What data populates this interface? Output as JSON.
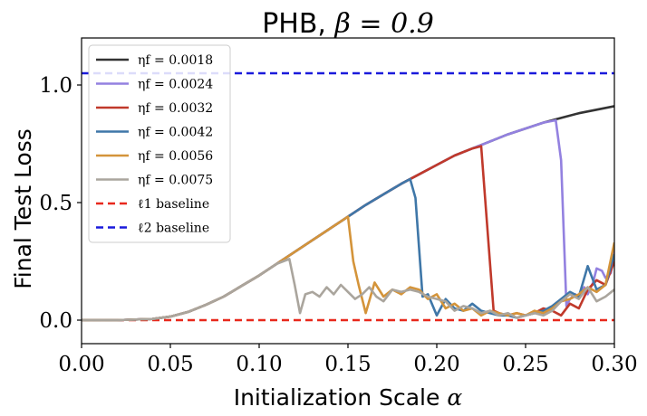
{
  "chart_data": {
    "type": "line",
    "title": "PHB, β = 0.9",
    "title_parts": {
      "text": "PHB, ",
      "math": "β = 0.9"
    },
    "xlabel": "Initialization Scale",
    "xlabel_symbol": "α",
    "ylabel": "Final Test Loss",
    "xlim": [
      0.0,
      0.3
    ],
    "ylim": [
      -0.1,
      1.2
    ],
    "xticks": [
      0.0,
      0.05,
      0.1,
      0.15,
      0.2,
      0.25,
      0.3
    ],
    "xtick_labels": [
      "0.00",
      "0.05",
      "0.10",
      "0.15",
      "0.20",
      "0.25",
      "0.30"
    ],
    "yticks": [
      0.0,
      0.5,
      1.0
    ],
    "ytick_labels": [
      "0.0",
      "0.5",
      "1.0"
    ],
    "legend_position": "top-left",
    "series": [
      {
        "name": "ηf = 0.0018",
        "color": "#333333",
        "style": "solid",
        "x": [
          0.0,
          0.02,
          0.04,
          0.05,
          0.06,
          0.07,
          0.08,
          0.09,
          0.1,
          0.11,
          0.12,
          0.13,
          0.14,
          0.15,
          0.16,
          0.17,
          0.18,
          0.19,
          0.2,
          0.21,
          0.22,
          0.23,
          0.24,
          0.25,
          0.26,
          0.27,
          0.28,
          0.29,
          0.3
        ],
        "y": [
          0.0,
          0.0,
          0.005,
          0.015,
          0.035,
          0.065,
          0.1,
          0.145,
          0.19,
          0.24,
          0.29,
          0.34,
          0.39,
          0.44,
          0.49,
          0.535,
          0.58,
          0.62,
          0.66,
          0.7,
          0.73,
          0.76,
          0.79,
          0.815,
          0.84,
          0.86,
          0.88,
          0.895,
          0.91
        ]
      },
      {
        "name": "ηf = 0.0024",
        "color": "#9381e0",
        "style": "solid",
        "x": [
          0.0,
          0.02,
          0.04,
          0.05,
          0.06,
          0.07,
          0.08,
          0.09,
          0.1,
          0.11,
          0.12,
          0.13,
          0.14,
          0.15,
          0.16,
          0.17,
          0.18,
          0.19,
          0.2,
          0.21,
          0.22,
          0.23,
          0.24,
          0.25,
          0.26,
          0.267,
          0.27,
          0.273,
          0.275,
          0.278,
          0.28,
          0.283,
          0.285,
          0.288,
          0.29,
          0.293,
          0.295,
          0.298,
          0.3
        ],
        "y": [
          0.0,
          0.0,
          0.005,
          0.015,
          0.035,
          0.065,
          0.1,
          0.145,
          0.19,
          0.24,
          0.29,
          0.34,
          0.39,
          0.44,
          0.49,
          0.535,
          0.58,
          0.62,
          0.66,
          0.7,
          0.73,
          0.76,
          0.79,
          0.815,
          0.84,
          0.85,
          0.68,
          0.06,
          0.09,
          0.11,
          0.1,
          0.14,
          0.11,
          0.16,
          0.22,
          0.21,
          0.18,
          0.2,
          0.31
        ]
      },
      {
        "name": "ηf = 0.0032",
        "color": "#c0392b",
        "style": "solid",
        "x": [
          0.0,
          0.02,
          0.04,
          0.05,
          0.06,
          0.07,
          0.08,
          0.09,
          0.1,
          0.11,
          0.12,
          0.13,
          0.14,
          0.15,
          0.16,
          0.17,
          0.18,
          0.19,
          0.2,
          0.21,
          0.22,
          0.225,
          0.232,
          0.235,
          0.24,
          0.245,
          0.25,
          0.255,
          0.26,
          0.265,
          0.27,
          0.275,
          0.28,
          0.285,
          0.29,
          0.295,
          0.3
        ],
        "y": [
          0.0,
          0.0,
          0.005,
          0.015,
          0.035,
          0.065,
          0.1,
          0.145,
          0.19,
          0.24,
          0.29,
          0.34,
          0.39,
          0.44,
          0.49,
          0.535,
          0.58,
          0.62,
          0.66,
          0.7,
          0.73,
          0.74,
          0.04,
          0.03,
          0.02,
          0.03,
          0.02,
          0.03,
          0.05,
          0.04,
          0.02,
          0.07,
          0.05,
          0.13,
          0.17,
          0.15,
          0.25
        ]
      },
      {
        "name": "ηf = 0.0042",
        "color": "#3f77a8",
        "style": "solid",
        "x": [
          0.0,
          0.02,
          0.04,
          0.05,
          0.06,
          0.07,
          0.08,
          0.09,
          0.1,
          0.11,
          0.12,
          0.13,
          0.14,
          0.15,
          0.16,
          0.17,
          0.18,
          0.185,
          0.188,
          0.192,
          0.195,
          0.2,
          0.205,
          0.21,
          0.215,
          0.22,
          0.225,
          0.23,
          0.235,
          0.24,
          0.245,
          0.25,
          0.255,
          0.26,
          0.265,
          0.27,
          0.275,
          0.28,
          0.285,
          0.29,
          0.295,
          0.3
        ],
        "y": [
          0.0,
          0.0,
          0.005,
          0.015,
          0.035,
          0.065,
          0.1,
          0.145,
          0.19,
          0.24,
          0.29,
          0.34,
          0.39,
          0.44,
          0.49,
          0.535,
          0.58,
          0.6,
          0.52,
          0.1,
          0.11,
          0.02,
          0.09,
          0.05,
          0.04,
          0.07,
          0.04,
          0.03,
          0.02,
          0.02,
          0.01,
          0.02,
          0.03,
          0.04,
          0.06,
          0.09,
          0.12,
          0.1,
          0.23,
          0.13,
          0.15,
          0.28
        ]
      },
      {
        "name": "ηf = 0.0056",
        "color": "#d4943a",
        "style": "solid",
        "x": [
          0.0,
          0.02,
          0.04,
          0.05,
          0.06,
          0.07,
          0.08,
          0.09,
          0.1,
          0.11,
          0.12,
          0.13,
          0.14,
          0.15,
          0.153,
          0.156,
          0.16,
          0.165,
          0.17,
          0.175,
          0.18,
          0.185,
          0.19,
          0.195,
          0.2,
          0.205,
          0.21,
          0.215,
          0.22,
          0.225,
          0.23,
          0.235,
          0.24,
          0.245,
          0.25,
          0.255,
          0.26,
          0.265,
          0.27,
          0.275,
          0.28,
          0.285,
          0.29,
          0.295,
          0.3
        ],
        "y": [
          0.0,
          0.0,
          0.005,
          0.015,
          0.035,
          0.065,
          0.1,
          0.145,
          0.19,
          0.24,
          0.29,
          0.34,
          0.39,
          0.44,
          0.25,
          0.15,
          0.03,
          0.16,
          0.1,
          0.13,
          0.11,
          0.14,
          0.13,
          0.09,
          0.11,
          0.05,
          0.07,
          0.04,
          0.05,
          0.02,
          0.04,
          0.03,
          0.02,
          0.03,
          0.02,
          0.04,
          0.03,
          0.05,
          0.08,
          0.09,
          0.11,
          0.14,
          0.12,
          0.15,
          0.33
        ]
      },
      {
        "name": "ηf = 0.0075",
        "color": "#aaa59d",
        "style": "solid",
        "x": [
          0.0,
          0.02,
          0.04,
          0.05,
          0.06,
          0.07,
          0.08,
          0.09,
          0.1,
          0.11,
          0.117,
          0.12,
          0.123,
          0.126,
          0.13,
          0.134,
          0.138,
          0.142,
          0.146,
          0.15,
          0.154,
          0.158,
          0.162,
          0.166,
          0.17,
          0.175,
          0.18,
          0.185,
          0.19,
          0.195,
          0.2,
          0.205,
          0.21,
          0.215,
          0.22,
          0.225,
          0.23,
          0.235,
          0.24,
          0.245,
          0.25,
          0.255,
          0.26,
          0.265,
          0.27,
          0.275,
          0.28,
          0.285,
          0.29,
          0.295,
          0.3
        ],
        "y": [
          0.0,
          0.0,
          0.005,
          0.015,
          0.035,
          0.065,
          0.1,
          0.145,
          0.19,
          0.24,
          0.26,
          0.15,
          0.03,
          0.11,
          0.12,
          0.1,
          0.14,
          0.11,
          0.15,
          0.12,
          0.09,
          0.11,
          0.14,
          0.1,
          0.08,
          0.13,
          0.12,
          0.13,
          0.12,
          0.1,
          0.09,
          0.08,
          0.04,
          0.06,
          0.05,
          0.03,
          0.04,
          0.02,
          0.03,
          0.01,
          0.02,
          0.03,
          0.02,
          0.04,
          0.08,
          0.11,
          0.09,
          0.14,
          0.08,
          0.1,
          0.13
        ]
      },
      {
        "name": "ℓ1 baseline",
        "color": "#e8281c",
        "style": "dashed",
        "x": [
          0.0,
          0.3
        ],
        "y": [
          0.0,
          0.0
        ]
      },
      {
        "name": "ℓ2 baseline",
        "color": "#1a1adb",
        "style": "dashed",
        "x": [
          0.0,
          0.3
        ],
        "y": [
          1.05,
          1.05
        ]
      }
    ]
  }
}
